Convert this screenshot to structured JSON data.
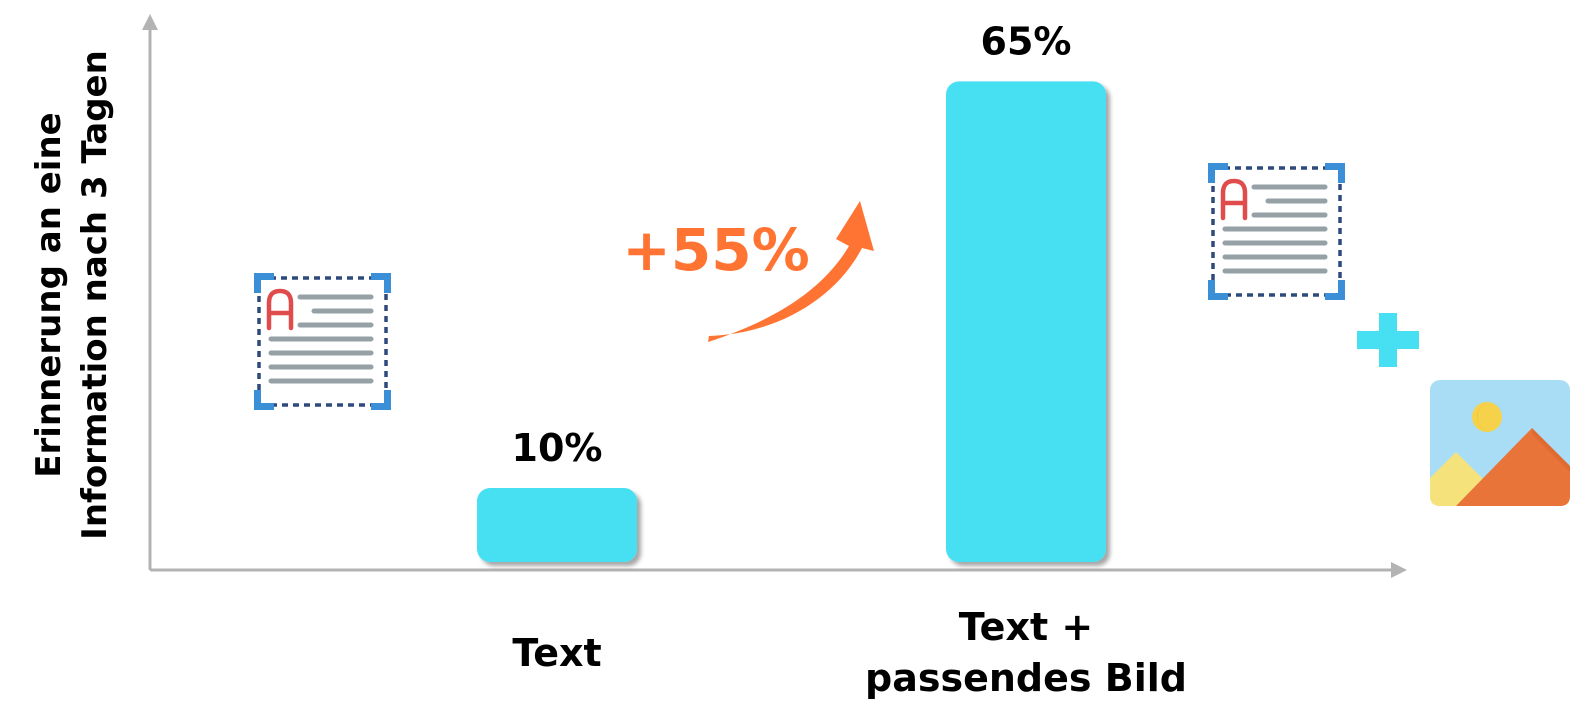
{
  "chart_data": {
    "type": "bar",
    "ylabel": [
      "Erinnerung an eine",
      "Information nach 3 Tagen"
    ],
    "xlabel": "",
    "categories": [
      [
        "Text"
      ],
      [
        "Text +",
        "passendes Bild"
      ]
    ],
    "values": [
      10,
      65
    ],
    "value_labels": [
      "10%",
      "65%"
    ],
    "ylim": [
      0,
      76
    ],
    "grid": false,
    "annotation": {
      "text": "+55%",
      "color": "#FF7433"
    },
    "bar_color": "#47E0F2",
    "icons": [
      "text-document-icon",
      "text-document-icon",
      "plus-icon",
      "image-icon"
    ]
  }
}
